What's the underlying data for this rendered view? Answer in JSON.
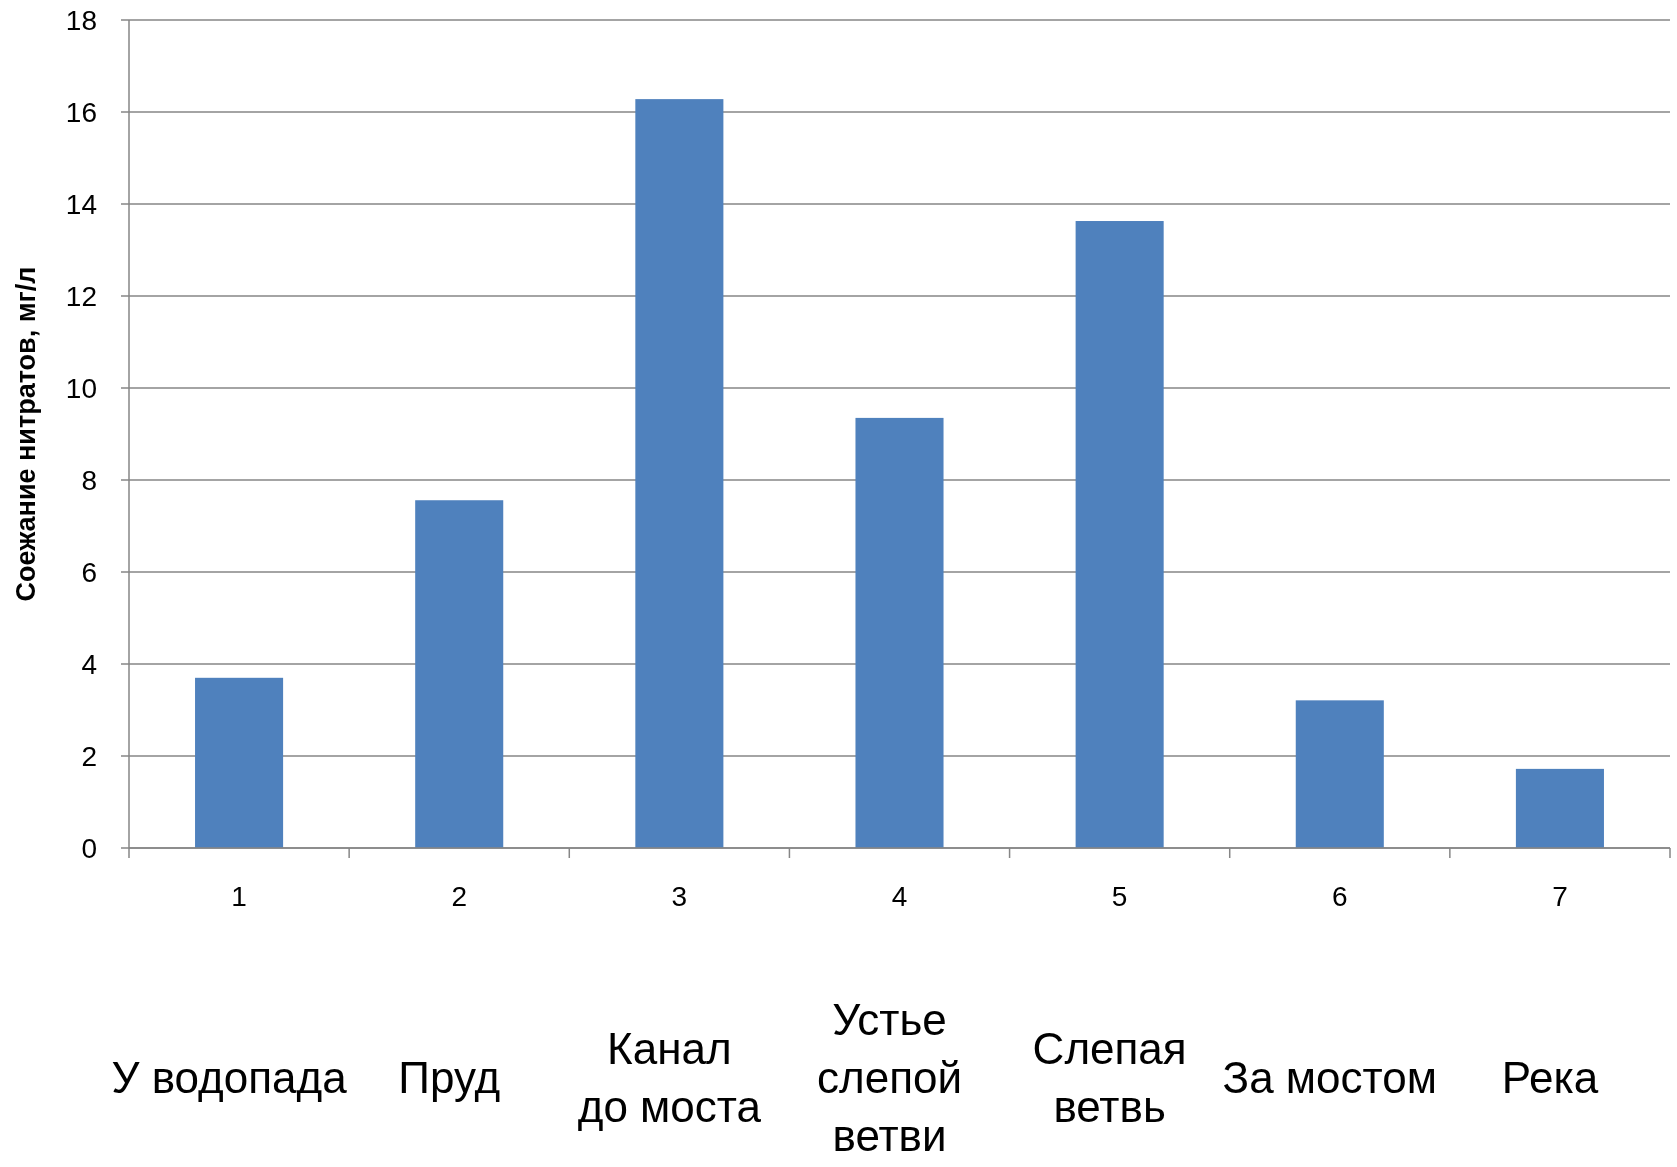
{
  "chart_data": {
    "type": "bar",
    "ylabel": "Соежание нитратов, мг/л",
    "categories": [
      "1",
      "2",
      "3",
      "4",
      "5",
      "6",
      "7"
    ],
    "values": [
      3.7,
      7.56,
      16.28,
      9.35,
      13.63,
      3.21,
      1.72
    ],
    "color": "#4f81bd",
    "ylim": [
      0,
      18
    ],
    "yticks": [
      0,
      2,
      4,
      6,
      8,
      10,
      12,
      14,
      16,
      18
    ],
    "grid": "y",
    "annotations": [
      "У водопада",
      "Пруд",
      "Канал\nдо моста",
      "Устье\nслепой\nветви",
      "Слепая\nветвь",
      "За мостом",
      "Река"
    ]
  }
}
